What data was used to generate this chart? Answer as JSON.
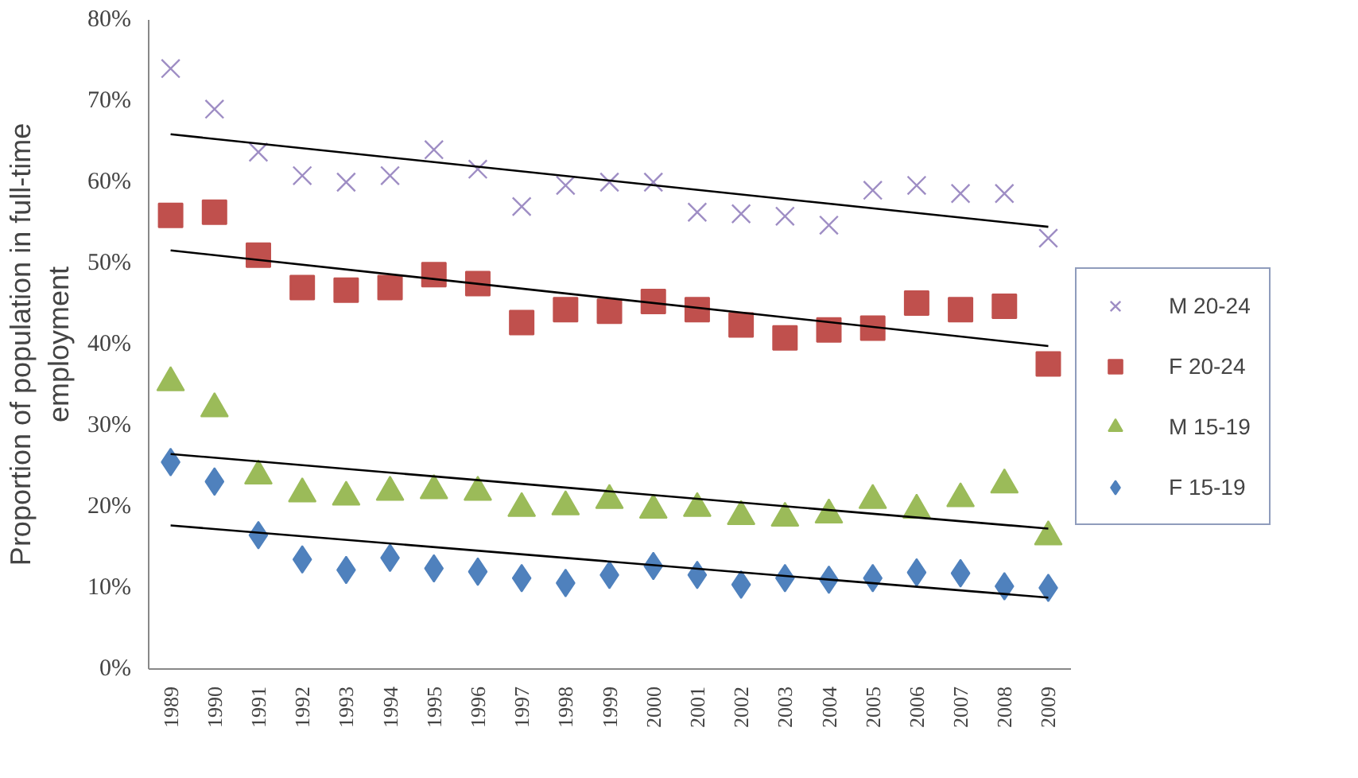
{
  "chart_data": {
    "type": "scatter",
    "ylabel": "Proportion of population in full-time employment",
    "categories": [
      "1989",
      "1990",
      "1991",
      "1992",
      "1993",
      "1994",
      "1995",
      "1996",
      "1997",
      "1998",
      "1999",
      "2000",
      "2001",
      "2002",
      "2003",
      "2004",
      "2005",
      "2006",
      "2007",
      "2008",
      "2009"
    ],
    "ylim": [
      0,
      80
    ],
    "yticks": [
      {
        "value": 0,
        "label": "0%"
      },
      {
        "value": 10,
        "label": "10%"
      },
      {
        "value": 20,
        "label": "20%"
      },
      {
        "value": 30,
        "label": "30%"
      },
      {
        "value": 40,
        "label": "40%"
      },
      {
        "value": 50,
        "label": "50%"
      },
      {
        "value": 60,
        "label": "60%"
      },
      {
        "value": 70,
        "label": "70%"
      },
      {
        "value": 80,
        "label": "80%"
      }
    ],
    "grid": false,
    "legend": "right",
    "series": [
      {
        "name": "M 20-24",
        "color": "#9e8dc4",
        "marker": "cross",
        "values": [
          74,
          69,
          63.7,
          60.8,
          60,
          60.8,
          64,
          61.6,
          57,
          59.6,
          60,
          60,
          56.3,
          56.1,
          55.8,
          54.7,
          59,
          59.6,
          58.6,
          58.6,
          53.1
        ]
      },
      {
        "name": "F 20-24",
        "color": "#c0504d",
        "marker": "square",
        "values": [
          55.9,
          56.3,
          51,
          47,
          46.7,
          47,
          48.6,
          47.5,
          42.7,
          44.3,
          44.1,
          45.3,
          44.3,
          42.4,
          40.8,
          41.8,
          42,
          45.1,
          44.3,
          44.7,
          37.6
        ]
      },
      {
        "name": "M 15-19",
        "color": "#9bbb59",
        "marker": "triangle",
        "values": [
          35.3,
          32.1,
          23.8,
          21.6,
          21.2,
          21.8,
          22,
          21.8,
          19.8,
          20,
          20.8,
          19.6,
          19.8,
          18.8,
          18.6,
          19,
          20.8,
          19.6,
          21,
          22.7,
          16.3
        ]
      },
      {
        "name": "F 15-19",
        "color": "#4f81bd",
        "marker": "diamond",
        "values": [
          25.5,
          23.1,
          16.5,
          13.5,
          12.2,
          13.7,
          12.4,
          12,
          11.2,
          10.6,
          11.6,
          12.7,
          11.6,
          10.4,
          11.2,
          11,
          11.2,
          11.9,
          11.8,
          10.2,
          10
        ]
      },
      {
        "type": "line",
        "color": "#000000",
        "marker": "none",
        "values": [
          65.9,
          null,
          null,
          null,
          null,
          null,
          null,
          null,
          null,
          null,
          null,
          null,
          null,
          null,
          null,
          null,
          null,
          null,
          null,
          null,
          54.5
        ]
      },
      {
        "type": "line",
        "color": "#000000",
        "marker": "none",
        "values": [
          51.6,
          null,
          null,
          null,
          null,
          null,
          null,
          null,
          null,
          null,
          null,
          null,
          null,
          null,
          null,
          null,
          null,
          null,
          null,
          null,
          39.8
        ]
      },
      {
        "type": "line",
        "color": "#000000",
        "marker": "none",
        "values": [
          26.5,
          null,
          null,
          null,
          null,
          null,
          null,
          null,
          null,
          null,
          null,
          null,
          null,
          null,
          null,
          null,
          null,
          null,
          null,
          null,
          17.3
        ]
      },
      {
        "type": "line",
        "color": "#000000",
        "marker": "none",
        "values": [
          17.7,
          null,
          null,
          null,
          null,
          null,
          null,
          null,
          null,
          null,
          null,
          null,
          null,
          null,
          null,
          null,
          null,
          null,
          null,
          null,
          8.8
        ]
      }
    ]
  }
}
